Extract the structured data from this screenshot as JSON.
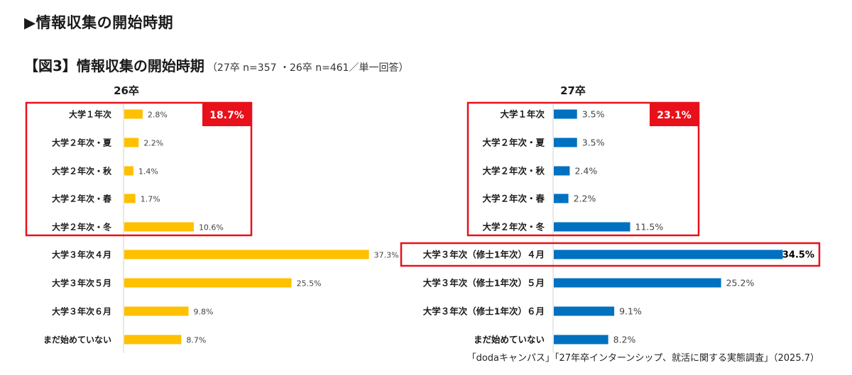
{
  "page_heading": "▶情報収集の開始時期",
  "figure": {
    "title": "【図3】情報収集の開始時期",
    "subtitle": "（27卒 n=357 ・26卒 n=461／単一回答）"
  },
  "source": "「dodaキャンパス」「27年卒インターンシップ、就活に関する実態調査」（2025.7）",
  "colors": {
    "left_bar": "#FFC000",
    "right_bar": "#0070C0",
    "highlight": "#E8101A"
  },
  "chart_data": [
    {
      "type": "bar",
      "orientation": "horizontal",
      "title": "26卒",
      "categories": [
        "大学１年次",
        "大学２年次・夏",
        "大学２年次・秋",
        "大学２年次・春",
        "大学２年次・冬",
        "大学３年次４月",
        "大学３年次５月",
        "大学３年次６月",
        "まだ始めていない"
      ],
      "values": [
        2.8,
        2.2,
        1.4,
        1.7,
        10.6,
        37.3,
        25.5,
        9.8,
        8.7
      ],
      "value_labels": [
        "2.8%",
        "2.2%",
        "1.4%",
        "1.7%",
        "10.6%",
        "37.3%",
        "25.5%",
        "9.8%",
        "8.7%"
      ],
      "color": "#FFC000",
      "highlight_group": {
        "categories": [
          0,
          1,
          2,
          3,
          4
        ],
        "total_label": "18.7%"
      }
    },
    {
      "type": "bar",
      "orientation": "horizontal",
      "title": "27卒",
      "categories": [
        "大学１年次",
        "大学２年次・夏",
        "大学２年次・秋",
        "大学２年次・春",
        "大学２年次・冬",
        "大学３年次（修士1年次）４月",
        "大学３年次（修士1年次）５月",
        "大学３年次（修士1年次）６月",
        "まだ始めていない"
      ],
      "values": [
        3.5,
        3.5,
        2.4,
        2.2,
        11.5,
        34.5,
        25.2,
        9.1,
        8.2
      ],
      "value_labels": [
        "3.5%",
        "3.5%",
        "2.4%",
        "2.2%",
        "11.5%",
        "34.5%",
        "25.2%",
        "9.1%",
        "8.2%"
      ],
      "color": "#0070C0",
      "highlight_group": {
        "categories": [
          0,
          1,
          2,
          3,
          4
        ],
        "total_label": "23.1%"
      },
      "highlight_single": {
        "category": 5
      }
    }
  ]
}
